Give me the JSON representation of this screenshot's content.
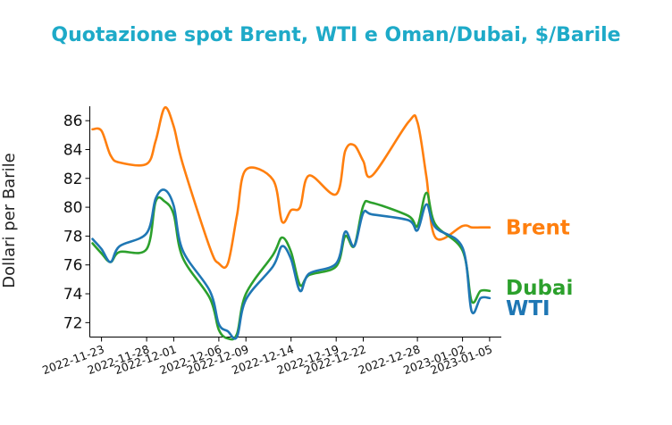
{
  "chart_data": {
    "type": "line",
    "title": "Quotazione spot Brent, WTI e Oman/Dubai, $/Barile",
    "title_color": "#1eaac8",
    "xlabel": "",
    "ylabel": "Dollari per Barile",
    "ylim": [
      71,
      87
    ],
    "yticks": [
      72,
      74,
      76,
      78,
      80,
      82,
      84,
      86
    ],
    "xlim": [
      "2022-11-22",
      "2023-01-06"
    ],
    "xticks": [
      "2022-11-23",
      "2022-11-28",
      "2022-12-01",
      "2022-12-06",
      "2022-12-09",
      "2022-12-14",
      "2022-12-19",
      "2022-12-22",
      "2022-12-28",
      "2023-01-02",
      "2023-01-05"
    ],
    "grid": false,
    "legend": "inline-right",
    "x": [
      "2022-11-22",
      "2022-11-23",
      "2022-11-24",
      "2022-11-25",
      "2022-11-28",
      "2022-11-29",
      "2022-11-30",
      "2022-12-01",
      "2022-12-02",
      "2022-12-05",
      "2022-12-06",
      "2022-12-07",
      "2022-12-08",
      "2022-12-09",
      "2022-12-12",
      "2022-12-13",
      "2022-12-14",
      "2022-12-15",
      "2022-12-16",
      "2022-12-19",
      "2022-12-20",
      "2022-12-21",
      "2022-12-22",
      "2022-12-23",
      "2022-12-27",
      "2022-12-28",
      "2022-12-29",
      "2022-12-30",
      "2023-01-02",
      "2023-01-03",
      "2023-01-04",
      "2023-01-05"
    ],
    "series": [
      {
        "name": "Brent",
        "color": "#ff7f0e",
        "values": [
          85.4,
          85.3,
          83.6,
          83.1,
          83.0,
          84.6,
          86.9,
          85.6,
          83.0,
          77.2,
          76.1,
          76.1,
          79.4,
          82.6,
          81.9,
          79.0,
          79.8,
          80.0,
          82.2,
          80.9,
          83.9,
          84.3,
          83.2,
          82.2,
          85.9,
          85.9,
          82.1,
          77.9,
          78.7,
          78.6,
          78.6,
          78.6
        ]
      },
      {
        "name": "Dubai",
        "color": "#2ca02c",
        "values": [
          77.5,
          76.8,
          76.2,
          76.9,
          77.1,
          80.4,
          80.4,
          79.5,
          76.5,
          73.7,
          71.5,
          70.9,
          71.2,
          74.0,
          76.7,
          77.9,
          76.9,
          74.6,
          75.3,
          75.9,
          78.0,
          77.3,
          80.1,
          80.3,
          79.4,
          78.7,
          81.0,
          78.8,
          77.0,
          73.5,
          74.2,
          74.2
        ]
      },
      {
        "name": "WTI",
        "color": "#1f77b4",
        "values": [
          77.8,
          77.1,
          76.2,
          77.3,
          78.2,
          80.6,
          81.2,
          80.1,
          77.0,
          74.2,
          71.9,
          71.4,
          71.0,
          73.6,
          75.9,
          77.3,
          76.4,
          74.2,
          75.4,
          76.1,
          78.3,
          77.3,
          79.6,
          79.5,
          79.1,
          78.4,
          80.2,
          78.6,
          77.2,
          72.8,
          73.7,
          73.7
        ]
      }
    ]
  }
}
